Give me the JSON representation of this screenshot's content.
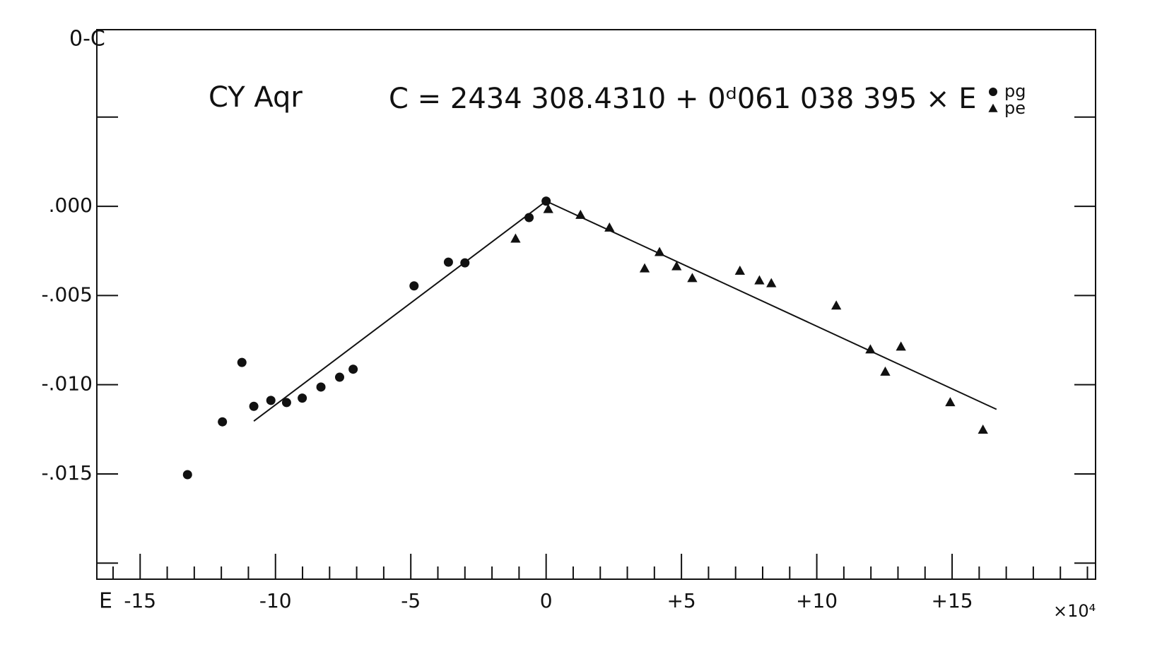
{
  "chart_data": {
    "type": "scatter",
    "title": "CY Aqr",
    "subtitle": "C = 2434 308.4310 + 0ᵈ061 038 395 × E",
    "ylabel": "0-C",
    "xlabel": "E",
    "xunit": "×10⁴",
    "xlim": [
      -16.6,
      20.3
    ],
    "ylim": [
      -0.0209,
      0.0099
    ],
    "xticks": [
      -15,
      -10,
      -5,
      0,
      {
        "value": 5,
        "label": "+5"
      },
      {
        "value": 10,
        "label": "+10"
      },
      {
        "value": 15,
        "label": "+15"
      }
    ],
    "xminor": [
      -16,
      -14,
      -13,
      -12,
      -11,
      -9,
      -8,
      -7,
      -6,
      -4,
      -3,
      -2,
      -1,
      1,
      2,
      3,
      4,
      6,
      7,
      8,
      9,
      11,
      12,
      13,
      14,
      16,
      17,
      18,
      19,
      20
    ],
    "yticks": [
      {
        "value": 0,
        "label": ".000"
      },
      {
        "value": -0.005,
        "label": "-.005"
      },
      {
        "value": -0.01,
        "label": "-.010"
      },
      {
        "value": -0.015,
        "label": "-.015"
      }
    ],
    "yminor": [
      0.005,
      -0.02
    ],
    "legend": "top-right",
    "series": [
      {
        "name": "pg",
        "marker": "circle",
        "color": "#111111",
        "x": [
          -13.25,
          -11.96,
          -11.24,
          -10.8,
          -10.17,
          -9.59,
          -9.01,
          -8.32,
          -7.63,
          -7.13,
          -4.88,
          -3.61,
          -3.0,
          -0.63,
          0.0
        ],
        "values": [
          -0.01504,
          -0.01208,
          -0.00875,
          -0.01121,
          -0.01088,
          -0.011,
          -0.01075,
          -0.01013,
          -0.00958,
          -0.00913,
          -0.00446,
          -0.00313,
          -0.00317,
          -0.00063,
          0.00029
        ]
      },
      {
        "name": "pe",
        "marker": "triangle",
        "color": "#111111",
        "x": [
          -1.13,
          0.08,
          1.27,
          2.34,
          4.19,
          3.64,
          4.82,
          5.4,
          7.16,
          7.88,
          8.32,
          10.72,
          11.98,
          13.11,
          12.53,
          14.93,
          16.14
        ],
        "values": [
          -0.00183,
          -0.00017,
          -0.0005,
          -0.00121,
          -0.00258,
          -0.0035,
          -0.00338,
          -0.00404,
          -0.00363,
          -0.00417,
          -0.00433,
          -0.00558,
          -0.00804,
          -0.00788,
          -0.00929,
          -0.011,
          -0.01254
        ]
      }
    ],
    "lines": [
      {
        "color": "#111111",
        "x": [
          -10.8,
          0.0
        ],
        "values": [
          -0.01204,
          0.00029
        ]
      },
      {
        "color": "#111111",
        "x": [
          0.0,
          16.64
        ],
        "values": [
          0.00029,
          -0.01138
        ]
      }
    ]
  }
}
